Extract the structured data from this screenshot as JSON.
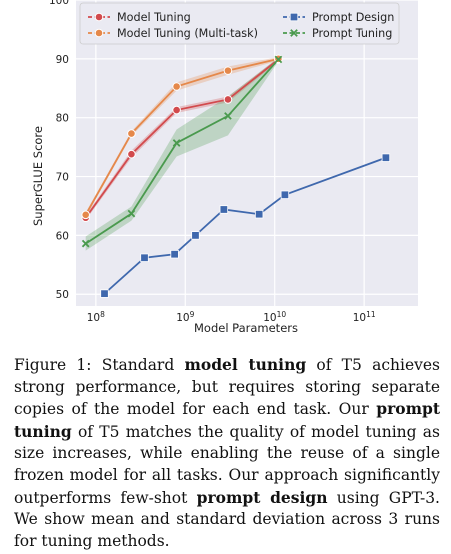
{
  "chart_data": {
    "type": "line",
    "xlabel": "Model Parameters",
    "ylabel": "SuperGLUE Score",
    "x_scale": "log",
    "xlim": [
      60000000,
      400000000000
    ],
    "ylim": [
      48,
      100
    ],
    "grid": true,
    "legend_position": "top",
    "y_ticks": [
      "50",
      "60",
      "70",
      "80",
      "90",
      "100"
    ],
    "x_ticks": [
      {
        "value": 100000000,
        "base": "10",
        "exp": "8"
      },
      {
        "value": 1000000000,
        "base": "10",
        "exp": "9"
      },
      {
        "value": 10000000000,
        "base": "10",
        "exp": "10"
      },
      {
        "value": 100000000000,
        "base": "10",
        "exp": "11"
      }
    ],
    "series": [
      {
        "name": "Model Tuning",
        "color": "#d24a4d",
        "marker": "circle",
        "x": [
          77000000,
          250000000,
          800000000,
          3000000000,
          11000000000
        ],
        "y": [
          63.0,
          73.8,
          81.3,
          83.1,
          89.9
        ],
        "band": [
          [
            62.6,
            63.4
          ],
          [
            73.2,
            74.4
          ],
          [
            80.8,
            81.8
          ],
          [
            82.6,
            83.6
          ],
          [
            89.6,
            90.2
          ]
        ]
      },
      {
        "name": "Model Tuning (Multi-task)",
        "color": "#e5884a",
        "marker": "circle",
        "x": [
          77000000,
          250000000,
          800000000,
          3000000000,
          11000000000
        ],
        "y": [
          63.5,
          77.3,
          85.3,
          88.0,
          90.0
        ],
        "band": [
          [
            63.1,
            63.9
          ],
          [
            76.9,
            77.7
          ],
          [
            84.6,
            86.0
          ],
          [
            87.3,
            88.7
          ],
          [
            89.7,
            90.3
          ]
        ]
      },
      {
        "name": "Prompt Design",
        "color": "#3f68ad",
        "marker": "square",
        "x": [
          125000000,
          350000000,
          760000000,
          1300000000,
          2700000000,
          6700000000,
          13000000000,
          175000000000
        ],
        "y": [
          50.1,
          56.2,
          56.8,
          60.0,
          64.4,
          63.6,
          66.9,
          73.2
        ]
      },
      {
        "name": "Prompt Tuning",
        "color": "#4a9a4e",
        "marker": "x",
        "x": [
          77000000,
          250000000,
          800000000,
          3000000000,
          11000000000
        ],
        "y": [
          58.6,
          63.7,
          75.7,
          80.3,
          89.9
        ],
        "band": [
          [
            57.4,
            59.8
          ],
          [
            62.5,
            64.9
          ],
          [
            73.4,
            78.0
          ],
          [
            77.0,
            83.6
          ],
          [
            89.6,
            90.2
          ]
        ]
      }
    ]
  },
  "caption": {
    "parts": [
      {
        "text": "Figure 1: Standard ",
        "bold": false
      },
      {
        "text": "model tuning",
        "bold": true
      },
      {
        "text": " of T5 achieves strong performance, but requires storing separate copies of the model for each end task.  Our ",
        "bold": false
      },
      {
        "text": "prompt tuning",
        "bold": true
      },
      {
        "text": " of T5 matches the quality of model tuning as size increases, while enabling the reuse of a single frozen model for all tasks. Our approach significantly outperforms few-shot ",
        "bold": false
      },
      {
        "text": "prompt design",
        "bold": true
      },
      {
        "text": " using GPT-3. We show mean and standard deviation across 3 runs for tuning methods.",
        "bold": false
      }
    ]
  }
}
